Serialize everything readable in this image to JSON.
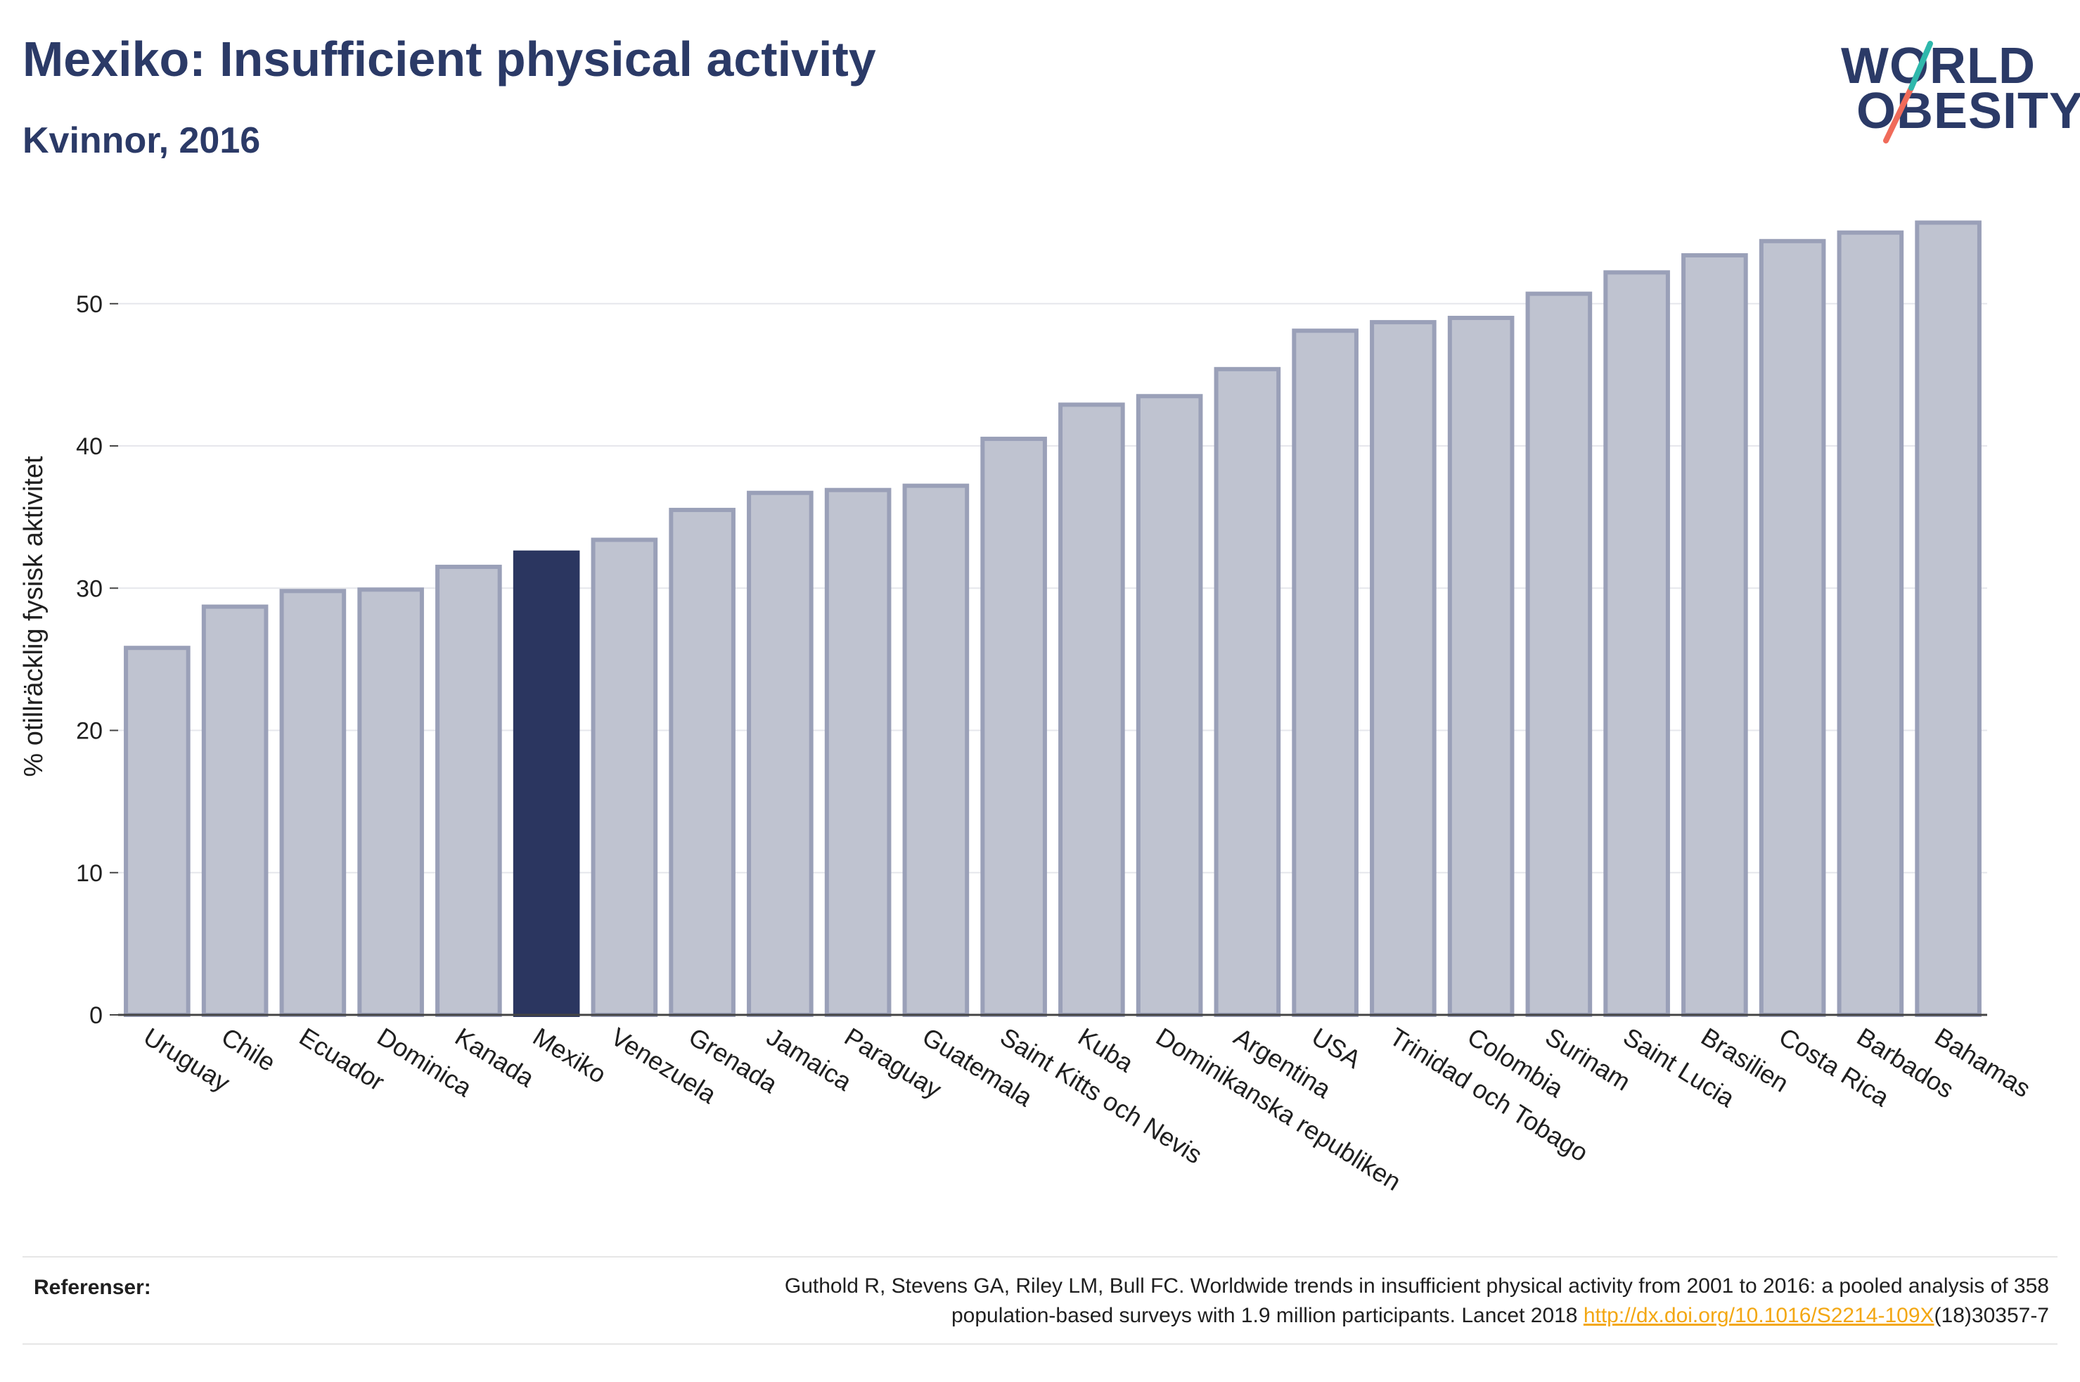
{
  "header": {
    "title": "Mexiko: Insufficient physical activity",
    "subtitle": "Kvinnor, 2016"
  },
  "logo": {
    "line1": "WORLD",
    "line2": "OBESITY"
  },
  "chart_data": {
    "type": "bar",
    "title": "Mexiko: Insufficient physical activity",
    "subtitle": "Kvinnor, 2016",
    "xlabel": "",
    "ylabel": "% otillräcklig fysisk aktivitet",
    "ylim": [
      0,
      58
    ],
    "yticks": [
      0,
      10,
      20,
      30,
      40,
      50
    ],
    "grid": true,
    "highlight": "Mexiko",
    "colors": {
      "bar_fill": "#bfc3d0",
      "bar_stroke": "#9aa0b8",
      "highlight": "#2b3660",
      "grid": "#e6e7ec",
      "axis": "#444444"
    },
    "categories": [
      "Uruguay",
      "Chile",
      "Ecuador",
      "Dominica",
      "Kanada",
      "Mexiko",
      "Venezuela",
      "Grenada",
      "Jamaica",
      "Paraguay",
      "Guatemala",
      "Saint Kitts och Nevis",
      "Kuba",
      "Dominikanska republiken",
      "Argentina",
      "USA",
      "Trinidad och Tobago",
      "Colombia",
      "Surinam",
      "Saint Lucia",
      "Brasilien",
      "Costa Rica",
      "Barbados",
      "Bahamas"
    ],
    "values": [
      25.8,
      28.7,
      29.8,
      29.9,
      31.5,
      32.5,
      33.4,
      35.5,
      36.7,
      36.9,
      37.2,
      40.5,
      42.9,
      43.5,
      45.4,
      48.1,
      48.7,
      49.0,
      50.7,
      52.2,
      53.4,
      54.4,
      55.0,
      55.7
    ]
  },
  "references": {
    "label": "Referenser:",
    "text_line1": "Guthold R, Stevens GA, Riley LM, Bull FC. Worldwide trends in insufficient physical activity from 2001 to 2016: a pooled analysis of 358",
    "text_line2_pre": "population-based surveys with 1.9 million participants. Lancet 2018 ",
    "link": "http://dx.doi.org/10.1016/S2214-109X",
    "text_line2_post": "(18)30357-7"
  }
}
